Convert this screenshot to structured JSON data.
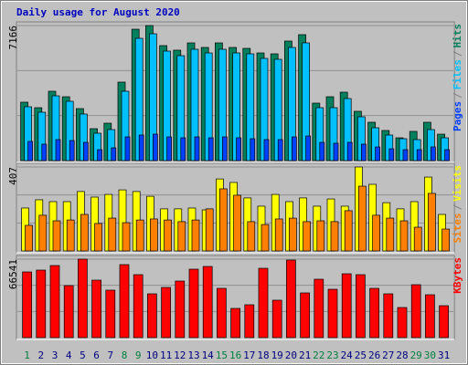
{
  "title": "Daily usage for August 2020",
  "chart_data": [
    {
      "type": "bar",
      "ylim": [
        0,
        7166
      ],
      "yticks": [
        7166
      ],
      "separator": "/",
      "series": [
        {
          "name": "Hits",
          "color": "#00805c",
          "values": [
            3099,
            2808,
            3680,
            3389,
            2760,
            1695,
            1985,
            4164,
            6972,
            7166,
            6101,
            5859,
            6246,
            6004,
            6246,
            6004,
            5955,
            5713,
            5665,
            6343,
            6682,
            3050,
            3389,
            3631,
            2615,
            2034,
            1598,
            1210,
            1550,
            2034,
            1403
          ]
        },
        {
          "name": "Files",
          "color": "#00c0ff",
          "values": [
            2857,
            2566,
            3438,
            3147,
            2470,
            1453,
            1646,
            3680,
            6488,
            6730,
            5810,
            5568,
            5907,
            5713,
            5907,
            5713,
            5665,
            5423,
            5375,
            6004,
            6246,
            2808,
            2808,
            3292,
            2325,
            1743,
            1356,
            1162,
            1114,
            1646,
            1210
          ]
        },
        {
          "name": "Pages",
          "color": "#0040ff",
          "values": [
            1018,
            872,
            1114,
            1065,
            968,
            581,
            678,
            1259,
            1356,
            1404,
            1259,
            1211,
            1259,
            1211,
            1259,
            1211,
            1162,
            1114,
            1114,
            1259,
            1307,
            968,
            920,
            968,
            872,
            726,
            629,
            581,
            581,
            726,
            581
          ]
        }
      ]
    },
    {
      "type": "bar",
      "ylim": [
        0,
        407
      ],
      "yticks": [
        407
      ],
      "separator": "/",
      "series": [
        {
          "name": "Visits",
          "color": "#ffff00",
          "values": [
            208,
            248,
            239,
            239,
            288,
            261,
            274,
            296,
            288,
            265,
            204,
            204,
            208,
            199,
            349,
            332,
            257,
            217,
            274,
            239,
            257,
            217,
            252,
            217,
            407,
            323,
            234,
            204,
            239,
            358,
            177
          ]
        },
        {
          "name": "Sites",
          "color": "#ff8000",
          "values": [
            124,
            173,
            146,
            150,
            177,
            133,
            159,
            137,
            150,
            155,
            150,
            142,
            150,
            204,
            301,
            270,
            142,
            128,
            155,
            159,
            142,
            146,
            142,
            195,
            314,
            173,
            159,
            146,
            115,
            279,
            106
          ]
        }
      ]
    },
    {
      "type": "bar",
      "ylim": [
        0,
        66541
      ],
      "yticks": [
        66541
      ],
      "categories": [
        "1",
        "2",
        "3",
        "4",
        "5",
        "6",
        "7",
        "8",
        "9",
        "10",
        "11",
        "12",
        "13",
        "14",
        "15",
        "16",
        "17",
        "18",
        "19",
        "20",
        "21",
        "22",
        "23",
        "24",
        "25",
        "26",
        "27",
        "28",
        "29",
        "30",
        "31"
      ],
      "category_colors": [
        "#008040",
        "#000080",
        "#000080",
        "#000080",
        "#000080",
        "#000080",
        "#000080",
        "#008040",
        "#008040",
        "#000080",
        "#000080",
        "#000080",
        "#000080",
        "#000080",
        "#008040",
        "#008040",
        "#000080",
        "#000080",
        "#000080",
        "#000080",
        "#000080",
        "#008040",
        "#008040",
        "#000080",
        "#000080",
        "#000080",
        "#000080",
        "#000080",
        "#008040",
        "#008040",
        "#000080"
      ],
      "series": [
        {
          "name": "KBytes",
          "color": "#ff0000",
          "values": [
            55707,
            57254,
            61122,
            44101,
            66541,
            48743,
            40232,
            61896,
            53385,
            37138,
            42554,
            47969,
            58028,
            60349,
            41780,
            24758,
            27853,
            58801,
            31722,
            65767,
            37911,
            49517,
            41006,
            54159,
            53385,
            41780,
            37138,
            25532,
            44875,
            36364,
            27080
          ]
        }
      ]
    }
  ]
}
